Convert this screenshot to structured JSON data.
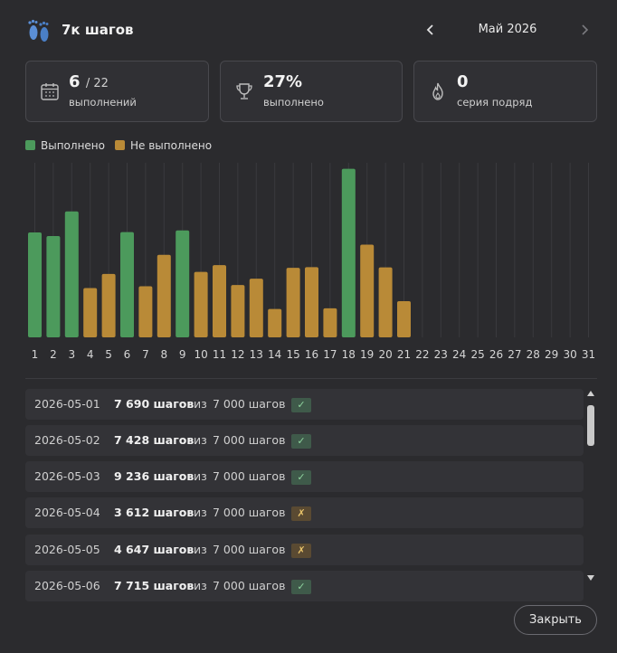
{
  "header": {
    "title": "7к шагов",
    "month": "Май 2026",
    "logo_icon": "footprints-icon",
    "prev_icon": "chevron-left-icon",
    "next_icon": "chevron-right-icon"
  },
  "cards": [
    {
      "icon": "calendar-icon",
      "value": "6",
      "total": "/ 22",
      "label": "выполнений"
    },
    {
      "icon": "trophy-icon",
      "value": "27%",
      "total": "",
      "label": "выполнено"
    },
    {
      "icon": "flame-icon",
      "value": "0",
      "total": "",
      "label": "серия подряд"
    }
  ],
  "legend": {
    "done_label": "Выполнено",
    "not_done_label": "Не выполнено"
  },
  "colors": {
    "done": "#4c9a5c",
    "not_done": "#b98a37",
    "background": "#2b2b2e",
    "grid": "#3a3a3e"
  },
  "chart_data": {
    "type": "bar",
    "categories": [
      "1",
      "2",
      "3",
      "4",
      "5",
      "6",
      "7",
      "8",
      "9",
      "10",
      "11",
      "12",
      "13",
      "14",
      "15",
      "16",
      "17",
      "18",
      "19",
      "20",
      "21",
      "22",
      "23",
      "24",
      "25",
      "26",
      "27",
      "28",
      "29",
      "30",
      "31"
    ],
    "values": [
      7690,
      7428,
      9236,
      3612,
      4647,
      7715,
      3750,
      6050,
      7840,
      4800,
      5300,
      3840,
      4300,
      2080,
      5100,
      5150,
      2130,
      12360,
      6800,
      5130,
      2650,
      null,
      null,
      null,
      null,
      null,
      null,
      null,
      null,
      null,
      null
    ],
    "goal": 7000,
    "ylim": [
      0,
      12800
    ],
    "title": "",
    "xlabel": "",
    "ylabel": "",
    "grid": true,
    "series_colors": {
      "done": "#4c9a5c",
      "not_done": "#b98a37"
    }
  },
  "list": {
    "rows": [
      {
        "date": "2026-05-01",
        "value": "7 690 шагов",
        "sep": "из",
        "target": "7 000 шагов",
        "status": "✓",
        "done": true
      },
      {
        "date": "2026-05-02",
        "value": "7 428 шагов",
        "sep": "из",
        "target": "7 000 шагов",
        "status": "✓",
        "done": true
      },
      {
        "date": "2026-05-03",
        "value": "9 236 шагов",
        "sep": "из",
        "target": "7 000 шагов",
        "status": "✓",
        "done": true
      },
      {
        "date": "2026-05-04",
        "value": "3 612 шагов",
        "sep": "из",
        "target": "7 000 шагов",
        "status": "✗",
        "done": false
      },
      {
        "date": "2026-05-05",
        "value": "4 647 шагов",
        "sep": "из",
        "target": "7 000 шагов",
        "status": "✗",
        "done": false
      },
      {
        "date": "2026-05-06",
        "value": "7 715 шагов",
        "sep": "из",
        "target": "7 000 шагов",
        "status": "✓",
        "done": true
      }
    ]
  },
  "footer": {
    "close_label": "Закрыть"
  }
}
